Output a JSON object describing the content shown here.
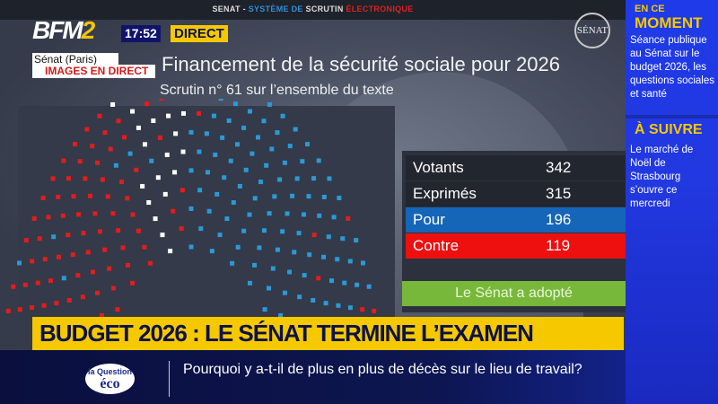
{
  "broadcast": {
    "channel_logo": "BFM2",
    "time": "17:52",
    "live_label": "DIRECT",
    "location": "Sénat (Paris)",
    "live_images": "IMAGES EN DIRECT"
  },
  "screen": {
    "ticker": {
      "part1": "SENAT - ",
      "part2": "SYSTÈME DE ",
      "part3": "SCRUTIN ",
      "part4": "ÉLECTRONIQUE"
    },
    "title": "Financement de la sécurité sociale pour 2026",
    "senat_logo": "SÉNAT",
    "subtitle": "Scrutin n° 61 sur l’ensemble du texte",
    "results": [
      {
        "label": "Votants",
        "value": "342",
        "color": "#22262f"
      },
      {
        "label": "Exprimés",
        "value": "315",
        "color": "#22262f"
      },
      {
        "label": "Pour",
        "value": "196",
        "color": "#1565b8"
      },
      {
        "label": "Contre",
        "value": "119",
        "color": "#ee0f0f"
      }
    ],
    "outcome": "Le Sénat a adopté",
    "seat_colors": {
      "pour": "#2a9ad8",
      "contre": "#e41c1c",
      "abstention": "#ffffff"
    }
  },
  "sidebar": {
    "now_small": "EN CE",
    "now_big": "MOMENT",
    "now_text": "Séance publique au Sénat sur le budget 2026, les questions sociales et santé",
    "next_title": "À SUIVRE",
    "next_text": "Le marché de Noël de Strasbourg s’ouvre ce mercredi"
  },
  "headline": "BUDGET 2026 : LE SÉNAT TERMINE L’EXAMEN",
  "lower_third": {
    "logo_small": "la Question",
    "logo_big": "éco",
    "question": "Pourquoi y a-t-il de plus en plus de décès sur le lieu de travail?"
  }
}
